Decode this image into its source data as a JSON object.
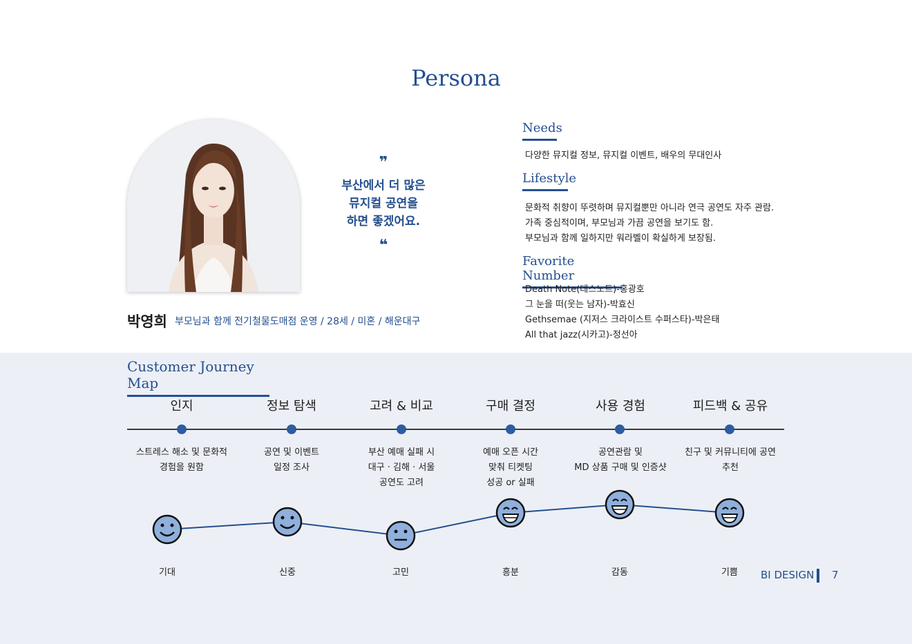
{
  "title": "Persona",
  "quote": {
    "open_mark": "❞",
    "close_mark": "❝",
    "lines": [
      "부산에서 더 많은",
      "뮤지컬 공연을",
      "하면 좋겠어요."
    ]
  },
  "person": {
    "name": "박영희",
    "description": "부모님과 함께 전기철물도매점 운영 / 28세 / 미혼 / 해운대구"
  },
  "needs": {
    "title": "Needs",
    "lines": [
      "다양한 뮤지컬 정보, 뮤지컬 이벤트, 배우의 무대인사"
    ]
  },
  "lifestyle": {
    "title": "Lifestyle",
    "lines": [
      "문화적 취향이 뚜렷하며 뮤지컬뿐만 아니라 연극 공연도 자주 관람.",
      "가족 중심적이며, 부모님과 가끔 공연을 보기도 함.",
      "부모님과 함께 일하지만 워라벨이 확실하게 보장됨."
    ]
  },
  "favorite": {
    "title": "Favorite Number",
    "lines": [
      "Death Note(데스노트)-홍광호",
      "그 눈을 떠(웃는 남자)-박효신",
      "Gethsemae (지저스 크라이스트 수퍼스타)-박은태",
      "All that jazz(시카고)-정선아"
    ]
  },
  "journey": {
    "title": "Customer Journey Map",
    "stages": [
      {
        "label": "인지",
        "desc": [
          "스트레스 해소 및 문화적",
          "경험을 원함"
        ],
        "emotion": "기대"
      },
      {
        "label": "정보 탐색",
        "desc": [
          "공연 및 이벤트",
          "일정 조사"
        ],
        "emotion": "신중"
      },
      {
        "label": "고려 & 비교",
        "desc": [
          "부산 예매 실패 시",
          "대구 · 김해 · 서울",
          "공연도 고려"
        ],
        "emotion": "고민"
      },
      {
        "label": "구매 결정",
        "desc": [
          "예매 오픈 시간",
          "맞춰 티켓팅",
          "성공 or 실패"
        ],
        "emotion": "흥분"
      },
      {
        "label": "사용 경험",
        "desc": [
          "공연관람 및",
          "MD 상품 구매 및 인증샷"
        ],
        "emotion": "감동"
      },
      {
        "label": "피드백 & 공유",
        "desc": [
          "친구 및 커뮤니티에 공연",
          "추천"
        ],
        "emotion": "기쁨"
      }
    ]
  },
  "footer": {
    "text": "BI DESIGN",
    "page": "7"
  },
  "colors": {
    "accent": "#244f8f",
    "face": "#8fb0dc",
    "band": "#eceff5"
  }
}
